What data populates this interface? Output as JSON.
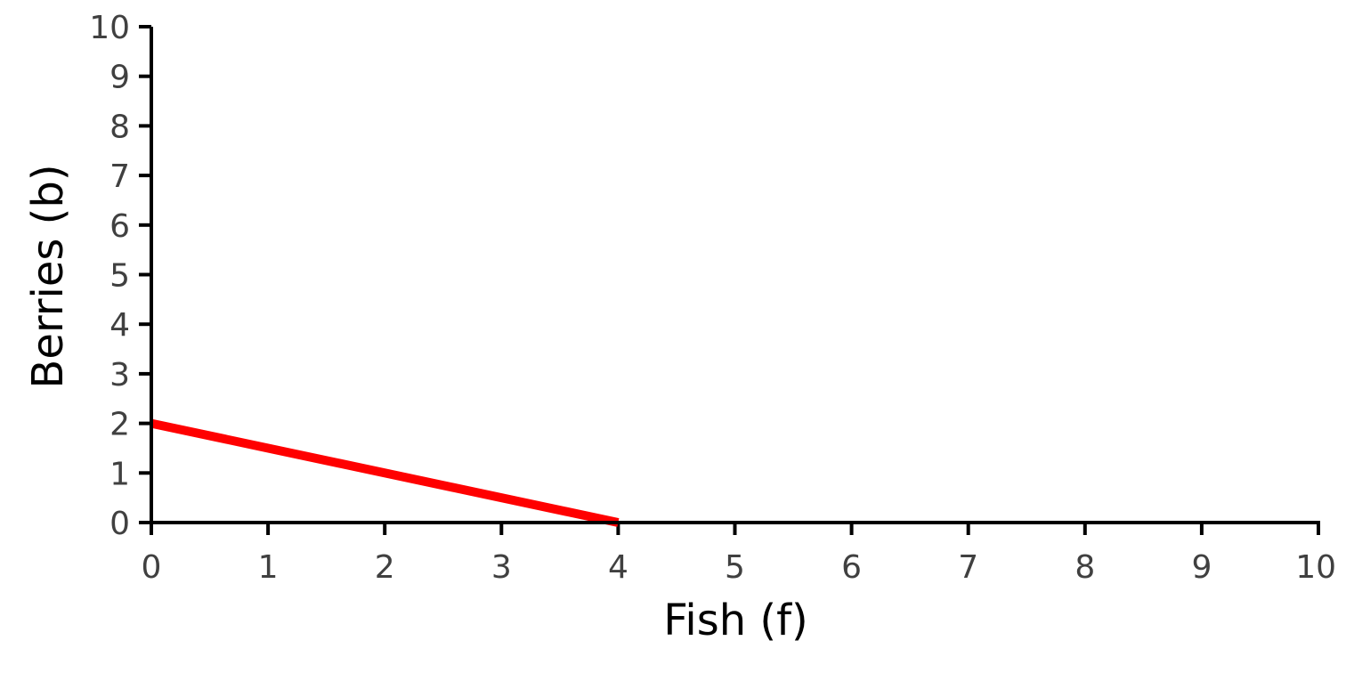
{
  "chart_data": {
    "type": "line",
    "title": "",
    "xlabel": "Fish (f)",
    "ylabel": "Berries (b)",
    "xlim": [
      0,
      10
    ],
    "ylim": [
      0,
      10
    ],
    "xticks": [
      "0",
      "1",
      "2",
      "3",
      "4",
      "5",
      "6",
      "7",
      "8",
      "9",
      "10"
    ],
    "yticks": [
      "0",
      "1",
      "2",
      "3",
      "4",
      "5",
      "6",
      "7",
      "8",
      "9",
      "10"
    ],
    "grid": false,
    "legend": "none",
    "series": [
      {
        "x": [
          0,
          4
        ],
        "y": [
          2,
          0
        ],
        "color": "#ff0000"
      }
    ],
    "axis_color": "#000000",
    "tick_label_color": "#404040"
  }
}
